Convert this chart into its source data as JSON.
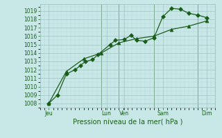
{
  "background_color": "#c8e8e8",
  "grid_color": "#99bbbb",
  "line_color": "#1a5c1a",
  "xlabel": "Pression niveau de la mer( hPa )",
  "ylim": [
    1007.5,
    1019.8
  ],
  "xlim": [
    0,
    10
  ],
  "yticks": [
    1008,
    1009,
    1010,
    1011,
    1012,
    1013,
    1014,
    1015,
    1016,
    1017,
    1018,
    1019
  ],
  "day_labels": [
    "Jeu",
    "",
    "Lun",
    "Ven",
    "",
    "Sam",
    "",
    "Dim"
  ],
  "day_positions": [
    0.5,
    2.0,
    4.0,
    5.0,
    6.0,
    7.0,
    8.5,
    9.5
  ],
  "vline_positions": [
    3.5,
    4.5,
    6.5,
    9.0
  ],
  "line1_x": [
    0.5,
    1.0,
    1.5,
    2.0,
    2.3,
    2.6,
    3.0,
    3.3,
    4.0,
    4.3,
    4.8,
    5.2,
    5.5,
    6.0,
    6.5,
    7.0,
    7.5,
    8.0,
    8.5,
    9.0,
    9.5
  ],
  "line1_y": [
    1008.0,
    1009.0,
    1011.5,
    1012.0,
    1012.5,
    1013.0,
    1013.2,
    1013.8,
    1015.0,
    1015.5,
    1015.6,
    1016.1,
    1015.5,
    1015.4,
    1015.8,
    1018.3,
    1019.3,
    1019.2,
    1018.7,
    1018.5,
    1018.2
  ],
  "line2_x": [
    0.5,
    1.5,
    2.5,
    3.5,
    4.5,
    5.5,
    6.5,
    7.5,
    8.5,
    9.5
  ],
  "line2_y": [
    1008.0,
    1011.8,
    1013.3,
    1014.0,
    1015.2,
    1015.7,
    1016.0,
    1016.8,
    1017.2,
    1017.8
  ],
  "marker1": "^",
  "marker2": "D",
  "markersize1": 3.5,
  "markersize2": 3.0,
  "linewidth": 0.9,
  "tick_fontsize": 5.5,
  "xlabel_fontsize": 7.0
}
